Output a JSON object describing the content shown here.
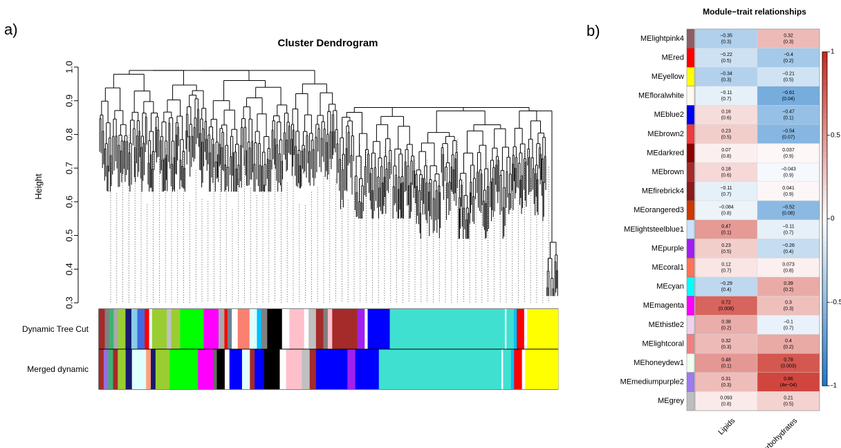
{
  "chart_data": [
    {
      "type": "dendrogram",
      "panel_label": "a)",
      "title": "Cluster Dendrogram",
      "ylabel": "Height",
      "ylim": [
        0.3,
        1.0
      ],
      "yticks": [
        "0.3",
        "0.4",
        "0.5",
        "0.6",
        "0.7",
        "0.8",
        "0.9",
        "1.0"
      ],
      "color_rows": [
        {
          "label": "Dynamic Tree Cut",
          "segments": [
            {
              "color": "#A52A2A",
              "w": 4
            },
            {
              "color": "#808080",
              "w": 3
            },
            {
              "color": "#3CB371",
              "w": 3
            },
            {
              "color": "#A9A9A9",
              "w": 3
            },
            {
              "color": "#9ACD32",
              "w": 5
            },
            {
              "color": "#191970",
              "w": 4
            },
            {
              "color": "#87CEEB",
              "w": 4
            },
            {
              "color": "#4169E1",
              "w": 5
            },
            {
              "color": "#FF0000",
              "w": 3
            },
            {
              "color": "#F0F8FF",
              "w": 2
            },
            {
              "color": "#9ACD32",
              "w": 10
            },
            {
              "color": "#C0C0C0",
              "w": 3
            },
            {
              "color": "#9ACD32",
              "w": 6
            },
            {
              "color": "#00FF00",
              "w": 16
            },
            {
              "color": "#FF00FF",
              "w": 10
            },
            {
              "color": "#A9A9A9",
              "w": 4
            },
            {
              "color": "#FF0000",
              "w": 2
            },
            {
              "color": "#708090",
              "w": 3
            },
            {
              "color": "#FFFFFF",
              "w": 4
            },
            {
              "color": "#FA8072",
              "w": 8
            },
            {
              "color": "#E0FFFF",
              "w": 5
            },
            {
              "color": "#00BFFF",
              "w": 3
            },
            {
              "color": "#808080",
              "w": 4
            },
            {
              "color": "#000000",
              "w": 10
            },
            {
              "color": "#FFFFFF",
              "w": 5
            },
            {
              "color": "#FFC0CB",
              "w": 10
            },
            {
              "color": "#FFFFFF",
              "w": 3
            },
            {
              "color": "#C0C0C0",
              "w": 5
            },
            {
              "color": "#A52A2A",
              "w": 5
            },
            {
              "color": "#808080",
              "w": 3
            },
            {
              "color": "#FFC0CB",
              "w": 3
            },
            {
              "color": "#A52A2A",
              "w": 17
            },
            {
              "color": "#A020F0",
              "w": 5
            },
            {
              "color": "#FFFFFF",
              "w": 2
            },
            {
              "color": "#0000FF",
              "w": 15
            },
            {
              "color": "#40E0D0",
              "w": 78
            },
            {
              "color": "#FFFFFF",
              "w": 1
            },
            {
              "color": "#40E0D0",
              "w": 5
            },
            {
              "color": "#00BFFF",
              "w": 2
            },
            {
              "color": "#FF0000",
              "w": 5
            },
            {
              "color": "#FFFFFF",
              "w": 2
            },
            {
              "color": "#FFFF00",
              "w": 21
            }
          ]
        },
        {
          "label": "Merged dynamic",
          "segments": [
            {
              "color": "#A52A2A",
              "w": 3
            },
            {
              "color": "#9370DB",
              "w": 3
            },
            {
              "color": "#3CB371",
              "w": 3
            },
            {
              "color": "#A52A2A",
              "w": 3
            },
            {
              "color": "#9ACD32",
              "w": 5
            },
            {
              "color": "#191970",
              "w": 4
            },
            {
              "color": "#E0FFFF",
              "w": 9
            },
            {
              "color": "#FFA07A",
              "w": 3
            },
            {
              "color": "#191970",
              "w": 3
            },
            {
              "color": "#9ACD32",
              "w": 9
            },
            {
              "color": "#00FF00",
              "w": 18
            },
            {
              "color": "#FF00FF",
              "w": 10
            },
            {
              "color": "#696969",
              "w": 2
            },
            {
              "color": "#000000",
              "w": 5
            },
            {
              "color": "#FFFFFF",
              "w": 3
            },
            {
              "color": "#0000FF",
              "w": 8
            },
            {
              "color": "#E0FFFF",
              "w": 5
            },
            {
              "color": "#A52A2A",
              "w": 3
            },
            {
              "color": "#0000FF",
              "w": 6
            },
            {
              "color": "#000000",
              "w": 10
            },
            {
              "color": "#FFFFFF",
              "w": 4
            },
            {
              "color": "#FFC0CB",
              "w": 10
            },
            {
              "color": "#C0C0C0",
              "w": 5
            },
            {
              "color": "#A52A2A",
              "w": 4
            },
            {
              "color": "#0000FF",
              "w": 20
            },
            {
              "color": "#A020F0",
              "w": 5
            },
            {
              "color": "#0000FF",
              "w": 15
            },
            {
              "color": "#40E0D0",
              "w": 78
            },
            {
              "color": "#FFFFFF",
              "w": 1
            },
            {
              "color": "#40E0D0",
              "w": 5
            },
            {
              "color": "#00BFFF",
              "w": 2
            },
            {
              "color": "#FF0000",
              "w": 5
            },
            {
              "color": "#FFFFFF",
              "w": 2
            },
            {
              "color": "#FFFF00",
              "w": 21
            }
          ]
        }
      ]
    },
    {
      "type": "heatmap",
      "panel_label": "b)",
      "title": "Module−trait relationships",
      "columns": [
        "Lipids",
        "Carbohydrates"
      ],
      "colorbar": {
        "range": [
          -1,
          1
        ],
        "ticks": [
          "1",
          "0.5",
          "0",
          "-0.5",
          "-1"
        ],
        "low": "#1F4E9F",
        "mid": "#FFFFFF",
        "high": "#B2182B"
      },
      "rows": [
        {
          "name": "MElightpink4",
          "color": "#8B5F65",
          "values": [
            {
              "r": -0.35,
              "r_text": "−0.35",
              "p": "(0.3)"
            },
            {
              "r": 0.32,
              "r_text": "0.32",
              "p": "(0.3)"
            }
          ]
        },
        {
          "name": "MEred",
          "color": "#FF0000",
          "values": [
            {
              "r": -0.22,
              "r_text": "−0.22",
              "p": "(0.5)"
            },
            {
              "r": -0.4,
              "r_text": "−0.4",
              "p": "(0.2)"
            }
          ]
        },
        {
          "name": "MEyellow",
          "color": "#FFFF00",
          "values": [
            {
              "r": -0.34,
              "r_text": "−0.34",
              "p": "(0.3)"
            },
            {
              "r": -0.21,
              "r_text": "−0.21",
              "p": "(0.5)"
            }
          ]
        },
        {
          "name": "MEfloralwhite",
          "color": "#FFFAF0",
          "values": [
            {
              "r": -0.11,
              "r_text": "−0.11",
              "p": "(0.7)"
            },
            {
              "r": -0.61,
              "r_text": "−0.61",
              "p": "(0.04)"
            }
          ]
        },
        {
          "name": "MEblue2",
          "color": "#0000EE",
          "values": [
            {
              "r": 0.16,
              "r_text": "0.16",
              "p": "(0.6)"
            },
            {
              "r": -0.47,
              "r_text": "−0.47",
              "p": "(0.1)"
            }
          ]
        },
        {
          "name": "MEbrown2",
          "color": "#EE3B3B",
          "values": [
            {
              "r": 0.23,
              "r_text": "0.23",
              "p": "(0.5)"
            },
            {
              "r": -0.54,
              "r_text": "−0.54",
              "p": "(0.07)"
            }
          ]
        },
        {
          "name": "MEdarkred",
          "color": "#8B0000",
          "values": [
            {
              "r": 0.07,
              "r_text": "0.07",
              "p": "(0.8)"
            },
            {
              "r": 0.037,
              "r_text": "0.037",
              "p": "(0.9)"
            }
          ]
        },
        {
          "name": "MEbrown",
          "color": "#A52A2A",
          "values": [
            {
              "r": 0.18,
              "r_text": "0.18",
              "p": "(0.6)"
            },
            {
              "r": -0.043,
              "r_text": "−0.043",
              "p": "(0.9)"
            }
          ]
        },
        {
          "name": "MEfirebrick4",
          "color": "#8B1A1A",
          "values": [
            {
              "r": -0.11,
              "r_text": "−0.11",
              "p": "(0.7)"
            },
            {
              "r": 0.041,
              "r_text": "0.041",
              "p": "(0.9)"
            }
          ]
        },
        {
          "name": "MEorangered3",
          "color": "#CD3700",
          "values": [
            {
              "r": -0.084,
              "r_text": "−0.084",
              "p": "(0.8)"
            },
            {
              "r": -0.52,
              "r_text": "−0.52",
              "p": "(0.08)"
            }
          ]
        },
        {
          "name": "MElightsteelblue1",
          "color": "#CAE1FF",
          "values": [
            {
              "r": 0.47,
              "r_text": "0.47",
              "p": "(0.1)"
            },
            {
              "r": -0.11,
              "r_text": "−0.11",
              "p": "(0.7)"
            }
          ]
        },
        {
          "name": "MEpurple",
          "color": "#A020F0",
          "values": [
            {
              "r": 0.23,
              "r_text": "0.23",
              "p": "(0.5)"
            },
            {
              "r": -0.26,
              "r_text": "−0.26",
              "p": "(0.4)"
            }
          ]
        },
        {
          "name": "MEcoral1",
          "color": "#FF7256",
          "values": [
            {
              "r": 0.12,
              "r_text": "0.12",
              "p": "(0.7)"
            },
            {
              "r": 0.073,
              "r_text": "0.073",
              "p": "(0.8)"
            }
          ]
        },
        {
          "name": "MEcyan",
          "color": "#00FFFF",
          "values": [
            {
              "r": -0.29,
              "r_text": "−0.29",
              "p": "(0.4)"
            },
            {
              "r": 0.39,
              "r_text": "0.39",
              "p": "(0.2)"
            }
          ]
        },
        {
          "name": "MEmagenta",
          "color": "#FF00FF",
          "values": [
            {
              "r": 0.72,
              "r_text": "0.72",
              "p": "(0.008)"
            },
            {
              "r": 0.3,
              "r_text": "0.3",
              "p": "(0.3)"
            }
          ]
        },
        {
          "name": "MEthistle2",
          "color": "#EED2EE",
          "values": [
            {
              "r": 0.38,
              "r_text": "0.38",
              "p": "(0.2)"
            },
            {
              "r": -0.1,
              "r_text": "−0.1",
              "p": "(0.7)"
            }
          ]
        },
        {
          "name": "MElightcoral",
          "color": "#F08080",
          "values": [
            {
              "r": 0.32,
              "r_text": "0.32",
              "p": "(0.3)"
            },
            {
              "r": 0.4,
              "r_text": "0.4",
              "p": "(0.2)"
            }
          ]
        },
        {
          "name": "MEhoneydew1",
          "color": "#F0FFF0",
          "values": [
            {
              "r": 0.48,
              "r_text": "0.48",
              "p": "(0.1)"
            },
            {
              "r": 0.78,
              "r_text": "0.78",
              "p": "(0.003)"
            }
          ]
        },
        {
          "name": "MEmediumpurple2",
          "color": "#9F79EE",
          "values": [
            {
              "r": 0.31,
              "r_text": "0.31",
              "p": "(0.3)"
            },
            {
              "r": 0.86,
              "r_text": "0.86",
              "p": "(4e−04)"
            }
          ]
        },
        {
          "name": "MEgrey",
          "color": "#BEBEBE",
          "values": [
            {
              "r": 0.093,
              "r_text": "0.093",
              "p": "(0.8)"
            },
            {
              "r": 0.21,
              "r_text": "0.21",
              "p": "(0.5)"
            }
          ]
        }
      ]
    }
  ]
}
